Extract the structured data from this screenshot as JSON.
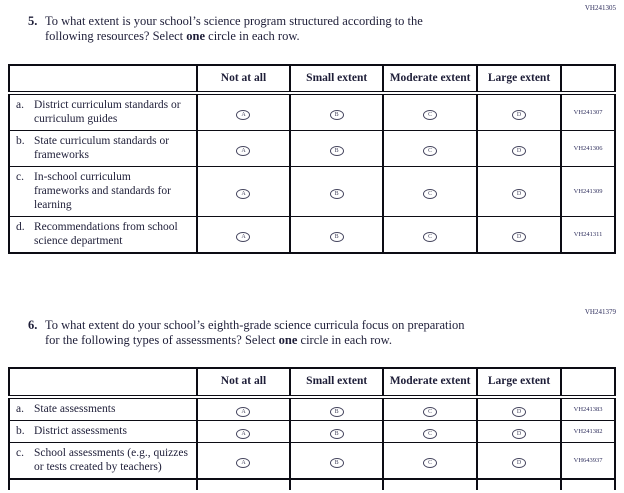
{
  "columns": [
    "Not at all",
    "Small extent",
    "Moderate extent",
    "Large extent"
  ],
  "option_letters": [
    "A",
    "B",
    "C",
    "D"
  ],
  "q5": {
    "code": "VH241305",
    "number": "5.",
    "line1": "To what extent is your school’s science program structured according to the",
    "line2_start": "following resources? Select ",
    "line2_bold": "one",
    "line2_end": " circle in each row.",
    "rows": [
      {
        "letter": "a.",
        "label": "District curriculum standards or curriculum guides",
        "code": "VH241307"
      },
      {
        "letter": "b.",
        "label": "State curriculum standards or frameworks",
        "code": "VH241306"
      },
      {
        "letter": "c.",
        "label": "In-school curriculum frameworks and standards for learning",
        "code": "VH241309"
      },
      {
        "letter": "d.",
        "label": "Recommendations from school science department",
        "code": "VH241311"
      }
    ]
  },
  "q6": {
    "code": "VH241379",
    "number": "6.",
    "line1": "To what extent do your school’s eighth-grade science curricula focus on preparation",
    "line2_start": "for the following types of assessments? Select ",
    "line2_bold": "one",
    "line2_end": " circle in each row.",
    "rows": [
      {
        "letter": "a.",
        "label": "State assessments",
        "code": "VH241383"
      },
      {
        "letter": "b.",
        "label": "District assessments",
        "code": "VH241382"
      },
      {
        "letter": "c.",
        "label": "School assessments (e.g., quizzes or tests created by teachers)",
        "code": "VH643937"
      }
    ]
  }
}
